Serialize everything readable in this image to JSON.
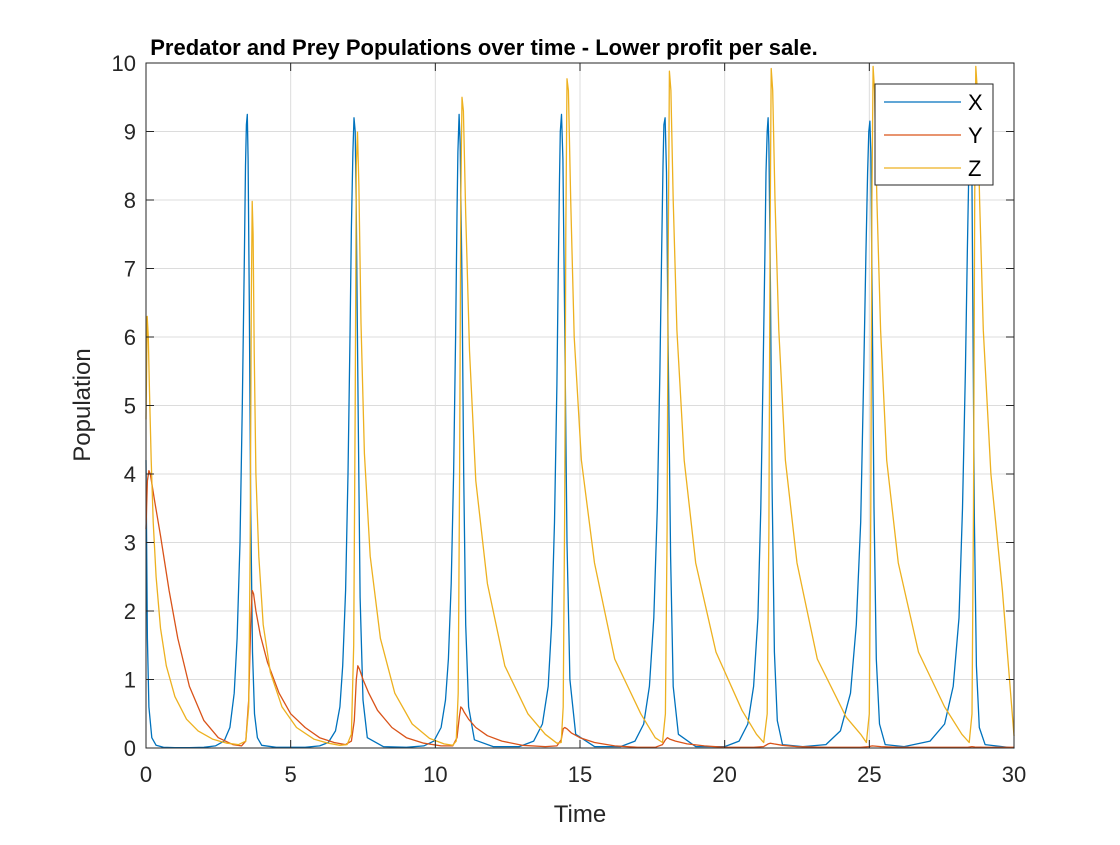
{
  "chart_data": {
    "type": "line",
    "title": "Predator and Prey Populations over time - Lower profit per sale.",
    "xlabel": "Time",
    "ylabel": "Population",
    "xlim": [
      0,
      30
    ],
    "ylim": [
      0,
      10
    ],
    "xticks": [
      0,
      5,
      10,
      15,
      20,
      25,
      30
    ],
    "xtick_labels": [
      "0",
      "5",
      "10",
      "15",
      "20",
      "25",
      "30"
    ],
    "yticks": [
      0,
      1,
      2,
      3,
      4,
      5,
      6,
      7,
      8,
      9,
      10
    ],
    "ytick_labels": [
      "0",
      "1",
      "2",
      "3",
      "4",
      "5",
      "6",
      "7",
      "8",
      "9",
      "10"
    ],
    "grid": true,
    "legend_position": "top-right",
    "series": [
      {
        "name": "X",
        "color": "#0072BD",
        "x": [
          0,
          0.05,
          0.1,
          0.2,
          0.35,
          0.6,
          1.0,
          1.5,
          2.0,
          2.4,
          2.7,
          2.9,
          3.05,
          3.15,
          3.25,
          3.33,
          3.4,
          3.44,
          3.47,
          3.5,
          3.53,
          3.57,
          3.62,
          3.68,
          3.75,
          3.85,
          4.0,
          4.5,
          5.0,
          5.5,
          6.0,
          6.3,
          6.55,
          6.7,
          6.8,
          6.9,
          6.98,
          7.05,
          7.1,
          7.15,
          7.19,
          7.23,
          7.27,
          7.33,
          7.4,
          7.5,
          7.65,
          8.2,
          9.0,
          9.6,
          9.95,
          10.2,
          10.35,
          10.45,
          10.55,
          10.63,
          10.7,
          10.75,
          10.78,
          10.82,
          10.86,
          10.92,
          10.98,
          11.05,
          11.15,
          11.35,
          12.0,
          12.9,
          13.4,
          13.7,
          13.9,
          14.02,
          14.12,
          14.2,
          14.25,
          14.29,
          14.32,
          14.36,
          14.41,
          14.47,
          14.55,
          14.65,
          14.85,
          15.5,
          16.4,
          16.9,
          17.2,
          17.4,
          17.55,
          17.67,
          17.76,
          17.82,
          17.87,
          17.9,
          17.94,
          17.99,
          18.05,
          18.13,
          18.22,
          18.4,
          19.0,
          20.0,
          20.5,
          20.8,
          21.0,
          21.15,
          21.25,
          21.33,
          21.39,
          21.43,
          21.47,
          21.5,
          21.53,
          21.58,
          21.64,
          21.72,
          21.82,
          22.0,
          22.7,
          23.5,
          24.0,
          24.35,
          24.55,
          24.7,
          24.8,
          24.88,
          24.94,
          24.98,
          25.02,
          25.05,
          25.1,
          25.16,
          25.24,
          25.35,
          25.55,
          26.2,
          27.1,
          27.6,
          27.9,
          28.1,
          28.22,
          28.32,
          28.39,
          28.44,
          28.48,
          28.51,
          28.54,
          28.58,
          28.63,
          28.7,
          28.8,
          29.0,
          30.0
        ],
        "values": [
          4.2,
          1.6,
          0.6,
          0.15,
          0.04,
          0.01,
          0.005,
          0.005,
          0.01,
          0.03,
          0.1,
          0.3,
          0.8,
          1.6,
          3.0,
          5.0,
          7.2,
          8.5,
          9.1,
          9.25,
          8.6,
          6.5,
          3.5,
          1.4,
          0.5,
          0.15,
          0.04,
          0.01,
          0.01,
          0.01,
          0.03,
          0.08,
          0.25,
          0.6,
          1.2,
          2.3,
          4.0,
          6.0,
          7.6,
          8.7,
          9.2,
          9.0,
          7.8,
          5.0,
          2.2,
          0.7,
          0.15,
          0.02,
          0.01,
          0.03,
          0.1,
          0.3,
          0.7,
          1.3,
          2.4,
          4.0,
          6.0,
          7.8,
          8.7,
          9.25,
          8.8,
          6.8,
          4.0,
          1.8,
          0.6,
          0.12,
          0.02,
          0.02,
          0.1,
          0.35,
          0.9,
          1.8,
          3.3,
          5.3,
          7.0,
          8.3,
          9.0,
          9.25,
          8.6,
          6.2,
          3.0,
          1.0,
          0.2,
          0.02,
          0.02,
          0.1,
          0.35,
          0.9,
          1.9,
          3.5,
          5.5,
          7.2,
          8.5,
          9.1,
          9.2,
          8.4,
          5.8,
          2.8,
          0.9,
          0.2,
          0.02,
          0.02,
          0.1,
          0.35,
          0.9,
          1.9,
          3.5,
          5.5,
          7.2,
          8.4,
          9.0,
          9.2,
          8.8,
          6.8,
          3.8,
          1.4,
          0.4,
          0.05,
          0.02,
          0.05,
          0.25,
          0.8,
          1.8,
          3.3,
          5.3,
          7.2,
          8.4,
          9.0,
          9.15,
          8.7,
          6.5,
          3.5,
          1.3,
          0.35,
          0.05,
          0.02,
          0.1,
          0.35,
          0.9,
          1.9,
          3.5,
          5.5,
          7.3,
          8.5,
          9.0,
          9.15,
          8.6,
          6.3,
          3.3,
          1.2,
          0.3,
          0.05,
          0.0
        ]
      },
      {
        "name": "Y",
        "color": "#D95319",
        "x": [
          0,
          0.05,
          0.1,
          0.15,
          0.3,
          0.5,
          0.8,
          1.1,
          1.5,
          2.0,
          2.5,
          3.0,
          3.3,
          3.45,
          3.55,
          3.62,
          3.67,
          3.72,
          3.8,
          3.95,
          4.2,
          4.6,
          5.0,
          5.5,
          6.0,
          6.5,
          6.9,
          7.1,
          7.2,
          7.27,
          7.32,
          7.38,
          7.5,
          7.7,
          8.0,
          8.5,
          9.0,
          9.6,
          10.2,
          10.6,
          10.75,
          10.83,
          10.88,
          10.93,
          11.0,
          11.15,
          11.4,
          11.8,
          12.3,
          13.0,
          13.8,
          14.2,
          14.35,
          14.42,
          14.47,
          14.55,
          14.7,
          15.0,
          15.5,
          16.2,
          17.0,
          17.6,
          17.85,
          17.95,
          18.02,
          18.1,
          18.3,
          18.7,
          19.3,
          20.0,
          21.0,
          21.35,
          21.5,
          21.58,
          21.7,
          22.0,
          22.5,
          23.5,
          24.7,
          24.98,
          25.1,
          25.4,
          26.0,
          27.5,
          28.4,
          28.55,
          28.65,
          29.0,
          30.0
        ],
        "values": [
          3.2,
          3.9,
          4.05,
          4.0,
          3.6,
          3.1,
          2.3,
          1.6,
          0.9,
          0.4,
          0.15,
          0.05,
          0.03,
          0.1,
          0.7,
          1.8,
          2.3,
          2.25,
          2.0,
          1.65,
          1.25,
          0.8,
          0.5,
          0.3,
          0.15,
          0.08,
          0.05,
          0.1,
          0.4,
          1.0,
          1.2,
          1.15,
          1.0,
          0.8,
          0.55,
          0.3,
          0.15,
          0.07,
          0.03,
          0.03,
          0.15,
          0.45,
          0.6,
          0.58,
          0.52,
          0.42,
          0.3,
          0.18,
          0.1,
          0.04,
          0.02,
          0.03,
          0.12,
          0.28,
          0.3,
          0.28,
          0.22,
          0.15,
          0.08,
          0.03,
          0.01,
          0.01,
          0.05,
          0.12,
          0.15,
          0.13,
          0.1,
          0.06,
          0.03,
          0.01,
          0.01,
          0.02,
          0.06,
          0.07,
          0.06,
          0.04,
          0.02,
          0.01,
          0.01,
          0.02,
          0.03,
          0.02,
          0.01,
          0.01,
          0.01,
          0.02,
          0.015,
          0.01,
          0.01
        ]
      },
      {
        "name": "Z",
        "color": "#EDB120",
        "x": [
          0,
          0.04,
          0.08,
          0.12,
          0.18,
          0.25,
          0.35,
          0.5,
          0.7,
          1.0,
          1.4,
          1.8,
          2.3,
          2.8,
          3.2,
          3.45,
          3.55,
          3.6,
          3.64,
          3.67,
          3.7,
          3.74,
          3.8,
          3.9,
          4.05,
          4.3,
          4.7,
          5.2,
          5.8,
          6.3,
          6.7,
          6.95,
          7.1,
          7.18,
          7.23,
          7.27,
          7.31,
          7.36,
          7.43,
          7.55,
          7.75,
          8.1,
          8.6,
          9.2,
          9.8,
          10.3,
          10.6,
          10.72,
          10.79,
          10.84,
          10.88,
          10.92,
          10.97,
          11.05,
          11.18,
          11.4,
          11.8,
          12.4,
          13.2,
          13.8,
          14.2,
          14.35,
          14.42,
          14.47,
          14.51,
          14.55,
          14.6,
          14.68,
          14.8,
          15.05,
          15.5,
          16.2,
          17.1,
          17.6,
          17.85,
          17.95,
          18.01,
          18.05,
          18.09,
          18.14,
          18.22,
          18.35,
          18.6,
          19.0,
          19.7,
          20.6,
          21.1,
          21.35,
          21.47,
          21.53,
          21.57,
          21.61,
          21.66,
          21.74,
          21.87,
          22.1,
          22.5,
          23.2,
          24.2,
          24.7,
          24.9,
          25.0,
          25.05,
          25.09,
          25.13,
          25.18,
          25.26,
          25.39,
          25.6,
          26.0,
          26.7,
          27.6,
          28.2,
          28.45,
          28.55,
          28.6,
          28.64,
          28.68,
          28.73,
          28.81,
          28.94,
          29.2,
          29.6,
          30.0
        ],
        "values": [
          4.8,
          6.3,
          6.0,
          5.2,
          4.2,
          3.3,
          2.5,
          1.75,
          1.2,
          0.75,
          0.42,
          0.25,
          0.13,
          0.07,
          0.05,
          0.1,
          0.6,
          3.0,
          6.5,
          7.98,
          7.5,
          5.8,
          4.0,
          2.8,
          1.8,
          1.1,
          0.6,
          0.3,
          0.13,
          0.07,
          0.04,
          0.05,
          0.2,
          1.5,
          5.0,
          8.5,
          8.99,
          8.2,
          6.2,
          4.3,
          2.8,
          1.6,
          0.8,
          0.35,
          0.14,
          0.06,
          0.04,
          0.1,
          0.8,
          4.0,
          8.0,
          9.5,
          9.3,
          7.8,
          5.8,
          3.9,
          2.4,
          1.2,
          0.5,
          0.2,
          0.07,
          0.08,
          0.6,
          3.5,
          7.5,
          9.77,
          9.6,
          8.0,
          6.0,
          4.2,
          2.7,
          1.3,
          0.5,
          0.15,
          0.08,
          0.5,
          3.2,
          7.2,
          9.88,
          9.6,
          8.0,
          6.1,
          4.2,
          2.7,
          1.4,
          0.55,
          0.2,
          0.08,
          0.5,
          3.2,
          7.5,
          9.92,
          9.6,
          8.0,
          6.1,
          4.2,
          2.7,
          1.3,
          0.45,
          0.2,
          0.08,
          0.5,
          3.5,
          8.0,
          9.95,
          9.6,
          8.0,
          6.1,
          4.2,
          2.7,
          1.4,
          0.6,
          0.2,
          0.08,
          0.5,
          3.5,
          8.0,
          9.95,
          9.6,
          8.0,
          6.1,
          4.0,
          2.3,
          0.18
        ]
      }
    ]
  }
}
